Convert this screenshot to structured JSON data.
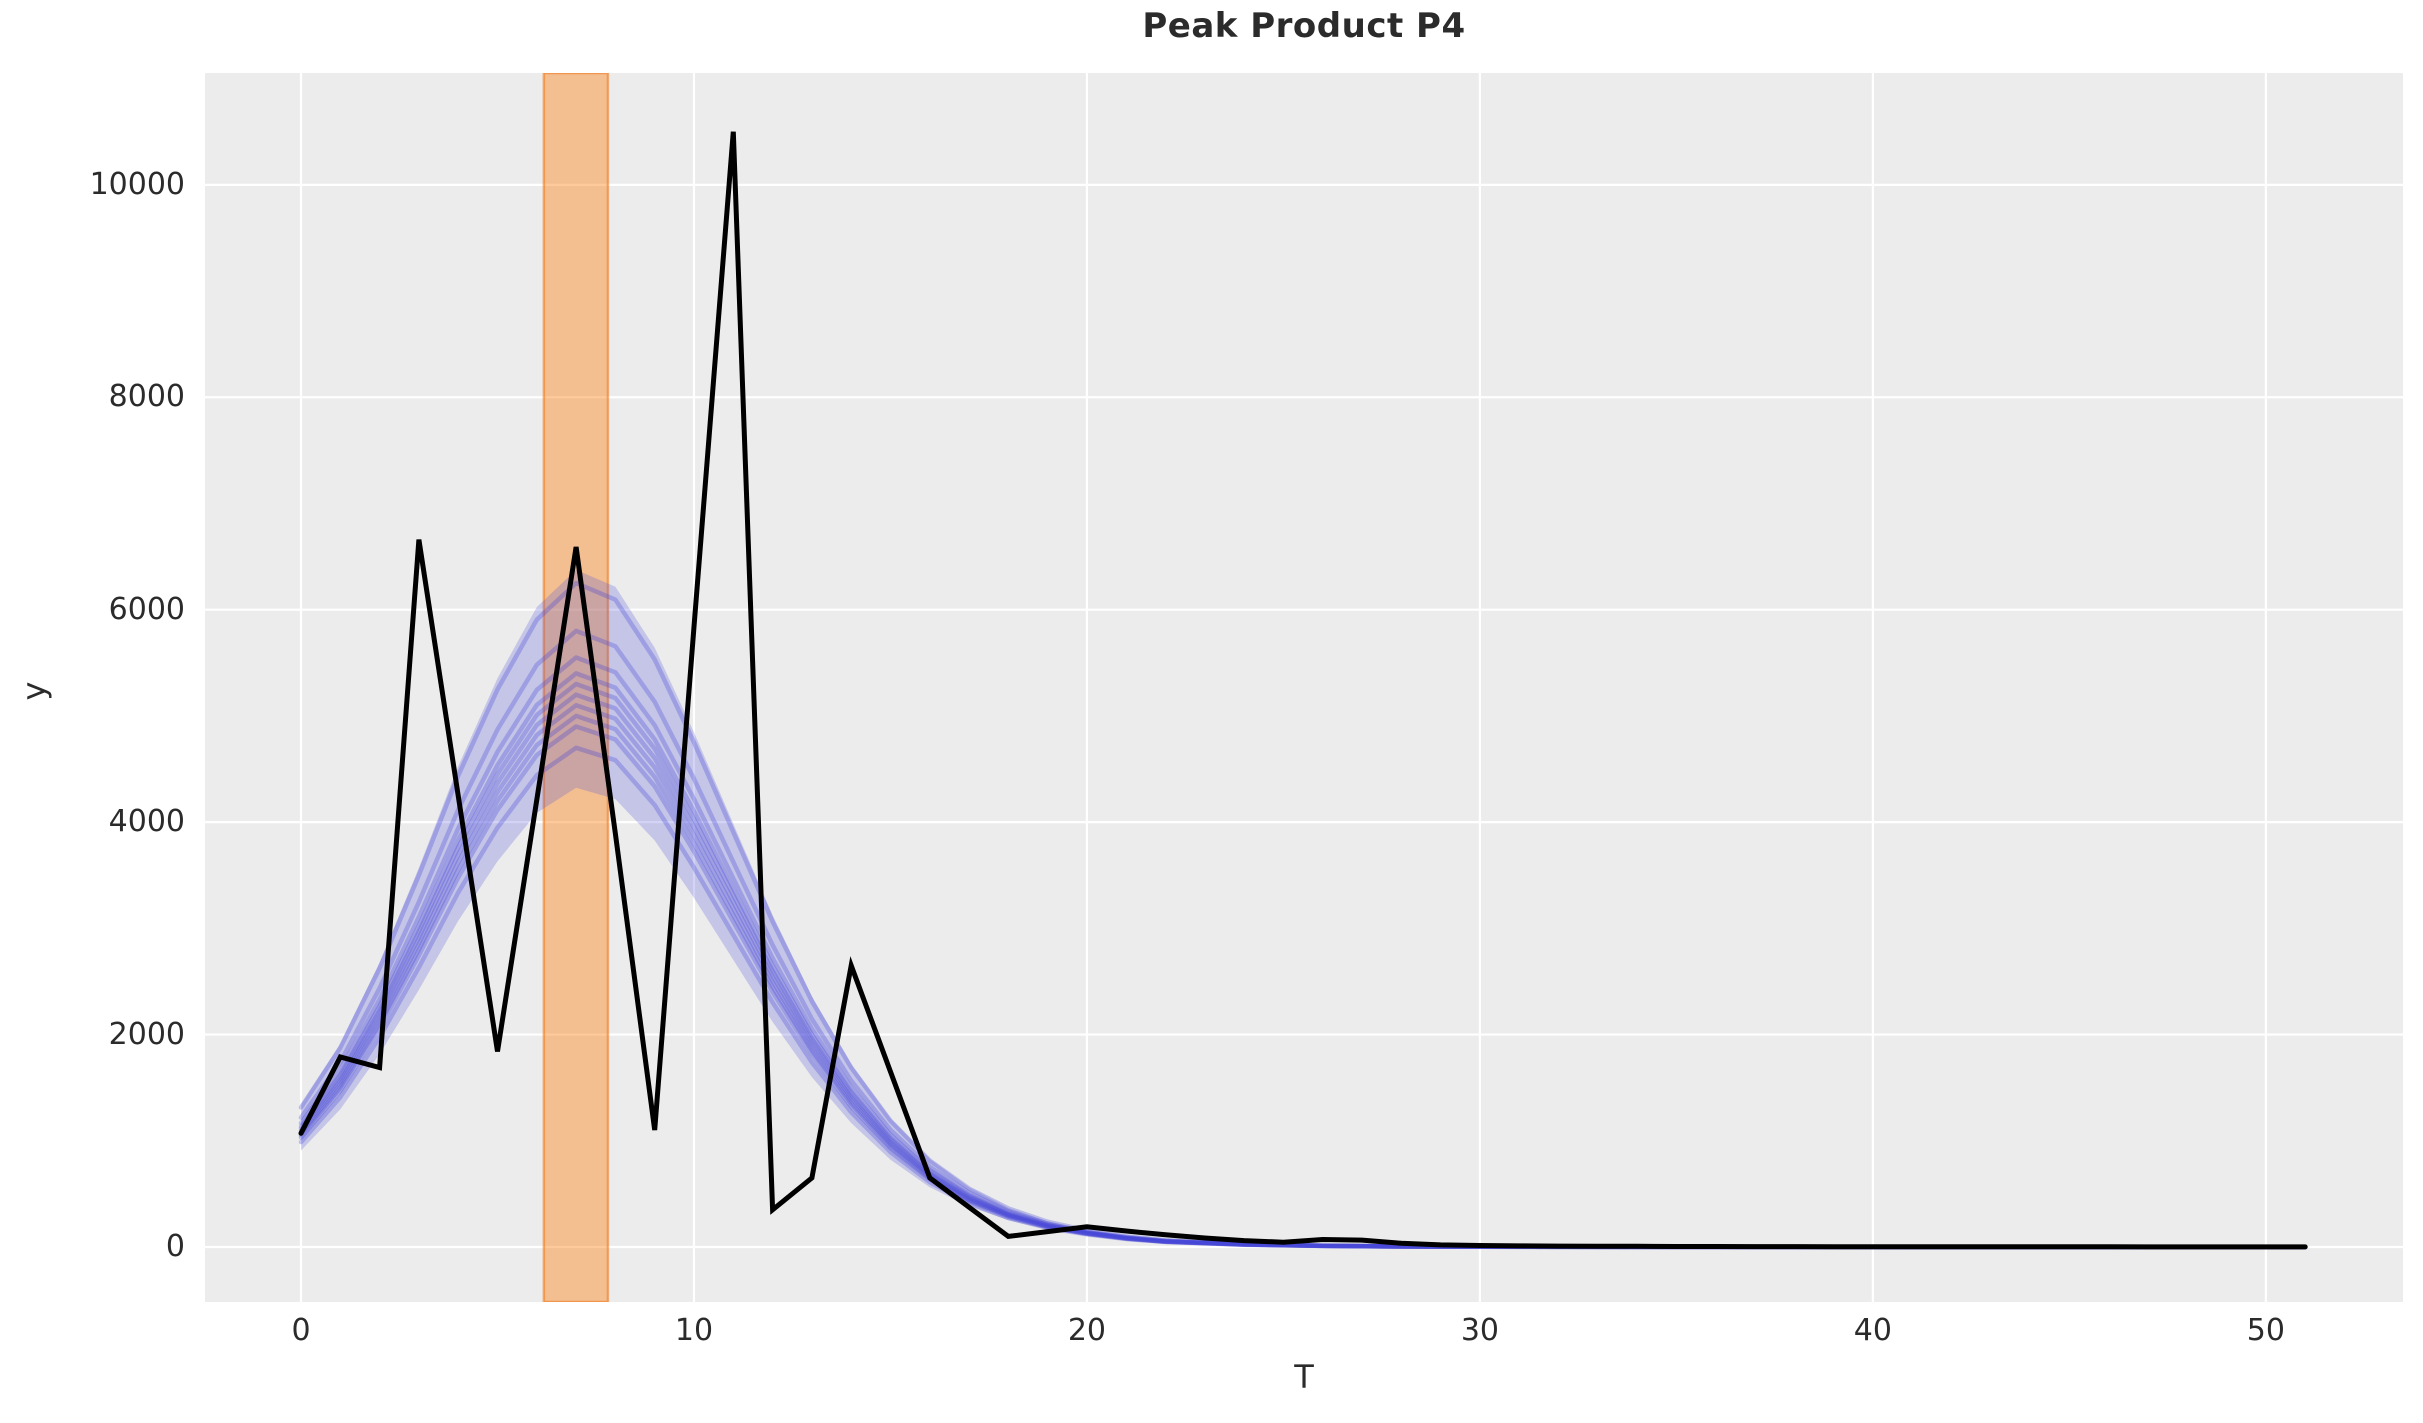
{
  "title": "Peak Product P4",
  "axes": {
    "xlabel": "T",
    "ylabel": "y",
    "x_ticks": [
      0,
      10,
      20,
      30,
      40,
      50
    ],
    "y_ticks": [
      0,
      2000,
      4000,
      6000,
      8000,
      10000
    ],
    "xlim": [
      -2.443,
      53.49
    ],
    "ylim": [
      -518,
      11053
    ],
    "grid": true,
    "background": "#ececec",
    "gridline_color": "#ffffff",
    "tick_color": "#2b2b2b"
  },
  "highlight_band": {
    "x_start": 6.18,
    "x_end": 7.81,
    "fill_color": "rgba(252,138,36,0.45)",
    "border_color": "rgba(244,124,32,0.60)"
  },
  "chart_data": {
    "type": "line",
    "title": "Peak Product P4",
    "xlabel": "T",
    "ylabel": "y",
    "xlim": [
      -2.443,
      53.49
    ],
    "ylim": [
      -518,
      11053
    ],
    "observed": {
      "name": "observed-data",
      "color": "#000000",
      "x": [
        0,
        1,
        2,
        3,
        4,
        5,
        6,
        7,
        8,
        9,
        10,
        11,
        12,
        13,
        14,
        15,
        16,
        17,
        18,
        19,
        20,
        21,
        22,
        23,
        24,
        25,
        26,
        27,
        28,
        29,
        30,
        31,
        32,
        33,
        34,
        35,
        36,
        37,
        38,
        39,
        40,
        41,
        42,
        43,
        44,
        45,
        46,
        47,
        48,
        49,
        50,
        51
      ],
      "y": [
        1070,
        1790,
        1690,
        6660,
        4250,
        1840,
        4210,
        6590,
        3890,
        1100,
        5840,
        10500,
        350,
        650,
        2650,
        1650,
        650,
        375,
        100,
        145,
        190,
        150,
        115,
        85,
        60,
        45,
        70,
        65,
        35,
        20,
        14,
        10,
        8,
        7,
        6,
        5,
        5,
        4,
        4,
        3,
        3,
        3,
        2,
        2,
        2,
        2,
        2,
        1,
        1,
        1,
        1,
        1
      ]
    },
    "posterior_samples": {
      "name": "posterior-sample-curves",
      "color": "rgba(70,70,215,0.30)",
      "fill_color": "rgba(80,80,220,0.25)",
      "x": [
        0,
        1,
        2,
        3,
        4,
        5,
        6,
        7,
        8,
        9,
        10,
        11,
        12,
        13,
        14,
        15,
        16,
        17,
        18,
        19,
        20,
        21,
        22,
        24,
        26,
        28,
        30,
        34,
        38,
        43,
        47,
        51
      ],
      "series": [
        {
          "name": "sample-1",
          "values": [
            1313,
            1875,
            2625,
            3500,
            4438,
            5250,
            5906,
            6250,
            6094,
            5531,
            4750,
            3906,
            3063,
            2313,
            1688,
            1188,
            813,
            550,
            363,
            238,
            156,
            100,
            63,
            28,
            13,
            6,
            3,
            1,
            1,
            0,
            0,
            0
          ]
        },
        {
          "name": "sample-2",
          "values": [
            1218,
            1740,
            2436,
            3248,
            4118,
            4872,
            5481,
            5800,
            5655,
            5133,
            4408,
            3625,
            2842,
            2146,
            1566,
            1102,
            754,
            510,
            336,
            220,
            145,
            93,
            58,
            26,
            12,
            6,
            3,
            1,
            1,
            0,
            0,
            0
          ]
        },
        {
          "name": "sample-3",
          "values": [
            1166,
            1665,
            2331,
            3108,
            3941,
            4662,
            5245,
            5550,
            5411,
            4912,
            4218,
            3469,
            2720,
            2054,
            1499,
            1055,
            722,
            488,
            322,
            211,
            139,
            89,
            56,
            25,
            11,
            6,
            3,
            1,
            1,
            0,
            0,
            0
          ]
        },
        {
          "name": "sample-4",
          "values": [
            1134,
            1620,
            2268,
            3024,
            3834,
            4536,
            5103,
            5400,
            5265,
            4779,
            4104,
            3375,
            2646,
            1998,
            1458,
            1026,
            702,
            475,
            313,
            205,
            135,
            86,
            54,
            24,
            11,
            5,
            3,
            1,
            1,
            0,
            0,
            0
          ]
        },
        {
          "name": "sample-5",
          "values": [
            1113,
            1590,
            2226,
            2968,
            3763,
            4452,
            5009,
            5300,
            5168,
            4691,
            4028,
            3313,
            2597,
            1961,
            1431,
            1007,
            689,
            466,
            307,
            201,
            133,
            85,
            53,
            24,
            11,
            5,
            3,
            1,
            1,
            0,
            0,
            0
          ]
        },
        {
          "name": "sample-6",
          "values": [
            1092,
            1560,
            2184,
            2912,
            3692,
            4368,
            4914,
            5200,
            5070,
            4602,
            3952,
            3250,
            2548,
            1924,
            1404,
            988,
            676,
            458,
            302,
            198,
            130,
            83,
            52,
            23,
            10,
            5,
            3,
            1,
            1,
            0,
            0,
            0
          ]
        },
        {
          "name": "sample-7",
          "values": [
            1071,
            1530,
            2142,
            2856,
            3621,
            4284,
            4820,
            5100,
            4973,
            4514,
            3876,
            3188,
            2499,
            1887,
            1377,
            969,
            663,
            449,
            296,
            194,
            128,
            82,
            51,
            23,
            10,
            5,
            3,
            1,
            1,
            0,
            0,
            0
          ]
        },
        {
          "name": "sample-8",
          "values": [
            1050,
            1500,
            2100,
            2800,
            3550,
            4200,
            4725,
            5000,
            4875,
            4425,
            3800,
            3125,
            2450,
            1850,
            1350,
            950,
            650,
            440,
            290,
            190,
            125,
            80,
            50,
            23,
            10,
            5,
            3,
            1,
            1,
            0,
            0,
            0
          ]
        },
        {
          "name": "sample-9",
          "values": [
            1029,
            1470,
            2058,
            2744,
            3479,
            4116,
            4631,
            4900,
            4778,
            4337,
            3724,
            3063,
            2401,
            1813,
            1323,
            931,
            637,
            431,
            284,
            186,
            123,
            78,
            49,
            22,
            10,
            5,
            2,
            1,
            0,
            0,
            0,
            0
          ]
        },
        {
          "name": "sample-10",
          "values": [
            987,
            1410,
            1974,
            2632,
            3337,
            3948,
            4442,
            4700,
            4583,
            4160,
            3572,
            2938,
            2303,
            1739,
            1269,
            893,
            611,
            414,
            273,
            179,
            118,
            75,
            47,
            21,
            9,
            5,
            2,
            1,
            0,
            0,
            0,
            0
          ]
        }
      ]
    },
    "highlight_band": {
      "x_start": 6.18,
      "x_end": 7.81
    }
  }
}
